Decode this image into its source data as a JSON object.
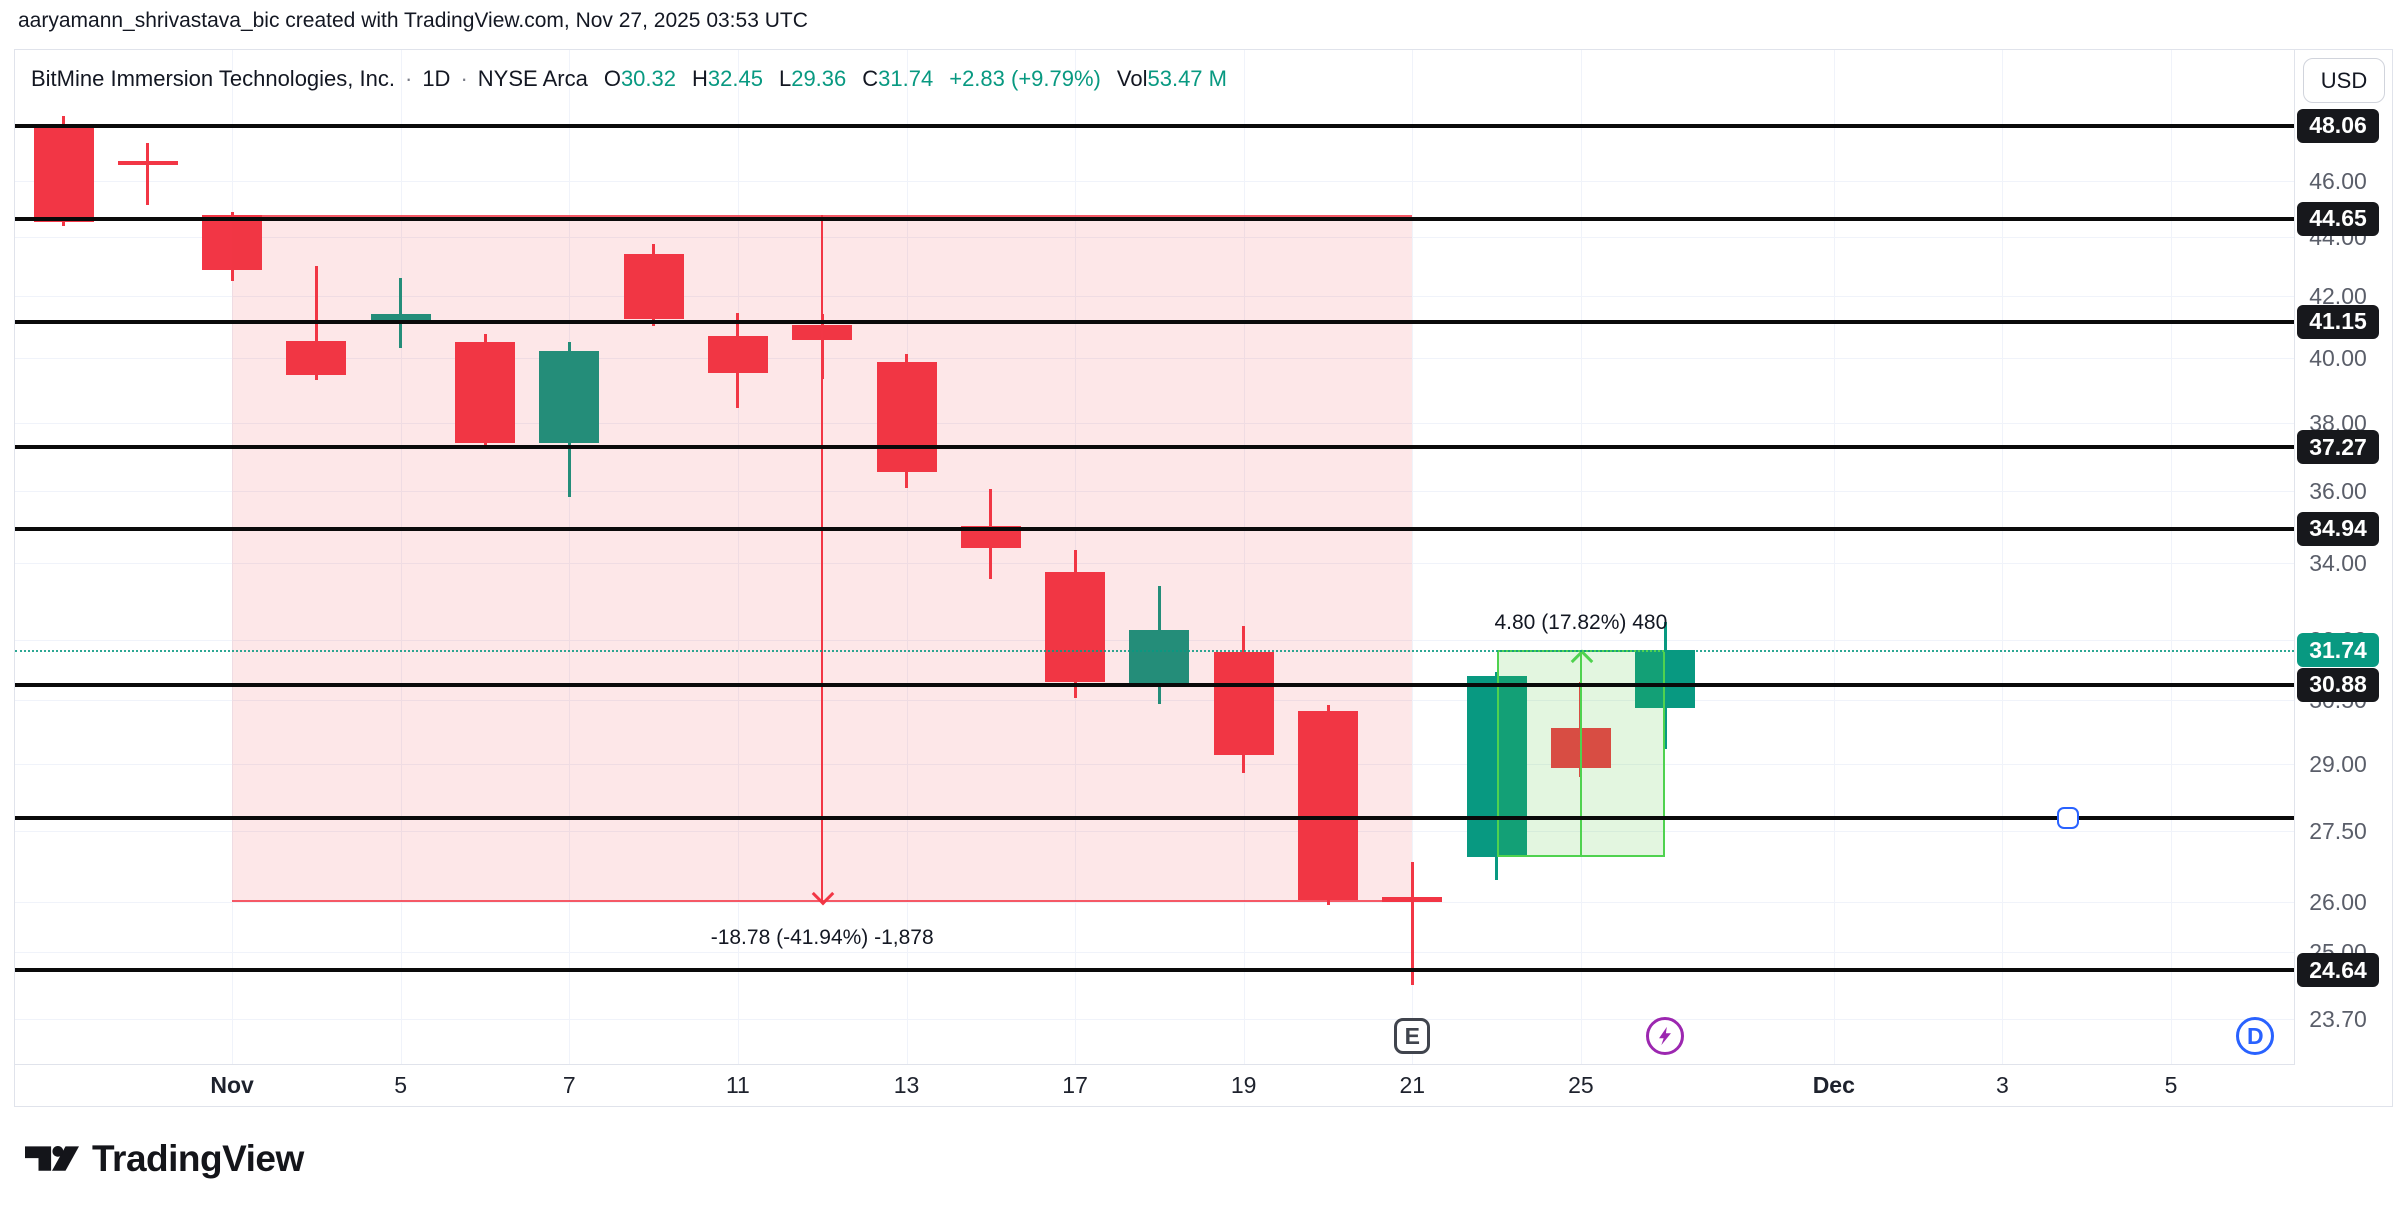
{
  "attribution": "aaryamann_shrivastava_bic created with TradingView.com, Nov 27, 2025 03:53 UTC",
  "currency_button": "USD",
  "footer_logo": "TradingView",
  "header": {
    "symbol": "BitMine Immersion Technologies, Inc.",
    "sep": "·",
    "interval": "1D",
    "exchange": "NYSE Arca",
    "o_label": "O",
    "o": "30.32",
    "h_label": "H",
    "h": "32.45",
    "l_label": "L",
    "l": "29.36",
    "c_label": "C",
    "c": "31.74",
    "change": "+2.83 (+9.79%)",
    "vol_label": "Vol",
    "vol": "53.47 M"
  },
  "colors": {
    "up": "#089981",
    "down": "#f23645",
    "measure_down_line": "#f23645",
    "measure_up_line": "#4fd24f",
    "drawing_line": "#0a0a0a",
    "badge_bg": "#17181c",
    "current_badge_bg": "#089981",
    "earnings_marker": "#40444d",
    "lightning_marker": "#9c27b0",
    "d_marker": "#2962ff"
  },
  "chart_data": {
    "type": "candlestick",
    "title": "BitMine Immersion Technologies, Inc. 1D NYSE Arca",
    "scale": "logarithmic",
    "ylim": [
      23.2,
      49.5
    ],
    "grid": true,
    "candles": [
      {
        "date": "Oct 30",
        "o": 48.0,
        "h": 48.45,
        "l": 44.4,
        "c": 44.55
      },
      {
        "date": "Oct 31",
        "o": 46.75,
        "h": 47.4,
        "l": 45.15,
        "c": 46.6
      },
      {
        "date": "Nov 3",
        "o": 44.77,
        "h": 44.9,
        "l": 42.5,
        "c": 42.87
      },
      {
        "date": "Nov 4",
        "o": 40.53,
        "h": 43.0,
        "l": 39.3,
        "c": 39.46
      },
      {
        "date": "Nov 5",
        "o": 41.2,
        "h": 42.6,
        "l": 40.3,
        "c": 41.4
      },
      {
        "date": "Nov 6",
        "o": 40.5,
        "h": 40.75,
        "l": 37.2,
        "c": 37.4
      },
      {
        "date": "Nov 7",
        "o": 37.4,
        "h": 40.5,
        "l": 35.83,
        "c": 40.21
      },
      {
        "date": "Nov 10",
        "o": 43.42,
        "h": 43.75,
        "l": 41.0,
        "c": 41.23
      },
      {
        "date": "Nov 11",
        "o": 40.68,
        "h": 41.45,
        "l": 38.45,
        "c": 39.53
      },
      {
        "date": "Nov 12",
        "o": 41.05,
        "h": 41.4,
        "l": 39.33,
        "c": 40.55
      },
      {
        "date": "Nov 13",
        "o": 39.88,
        "h": 40.12,
        "l": 36.07,
        "c": 36.55
      },
      {
        "date": "Nov 14",
        "o": 35.02,
        "h": 36.06,
        "l": 33.57,
        "c": 34.4
      },
      {
        "date": "Nov 17",
        "o": 33.76,
        "h": 34.36,
        "l": 30.55,
        "c": 30.94
      },
      {
        "date": "Nov 18",
        "o": 30.85,
        "h": 33.4,
        "l": 30.4,
        "c": 32.26
      },
      {
        "date": "Nov 19",
        "o": 31.7,
        "h": 32.35,
        "l": 28.8,
        "c": 29.2
      },
      {
        "date": "Nov 20",
        "o": 30.25,
        "h": 30.4,
        "l": 25.95,
        "c": 26.05
      },
      {
        "date": "Nov 21",
        "o": 26.1,
        "h": 26.85,
        "l": 24.35,
        "c": 26.0
      },
      {
        "date": "Nov 24",
        "o": 26.95,
        "h": 31.2,
        "l": 26.45,
        "c": 31.1
      },
      {
        "date": "Nov 25",
        "o": 29.85,
        "h": 30.95,
        "l": 28.7,
        "c": 28.9
      },
      {
        "date": "Nov 26",
        "o": 30.32,
        "h": 32.45,
        "l": 29.36,
        "c": 31.74
      }
    ],
    "x_ticks": [
      {
        "label": "Nov",
        "bar": 2,
        "bold": true
      },
      {
        "label": "5",
        "bar": 4
      },
      {
        "label": "7",
        "bar": 6
      },
      {
        "label": "11",
        "bar": 8
      },
      {
        "label": "13",
        "bar": 10
      },
      {
        "label": "17",
        "bar": 12
      },
      {
        "label": "19",
        "bar": 14
      },
      {
        "label": "21",
        "bar": 16
      },
      {
        "label": "25",
        "bar": 18
      },
      {
        "label": "Dec",
        "bar": 21,
        "bold": true
      },
      {
        "label": "3",
        "bar": 23
      },
      {
        "label": "5",
        "bar": 25
      }
    ],
    "y_grid_labels": [
      {
        "label": "46.00",
        "price": 46.0
      },
      {
        "label": "44.00",
        "price": 44.0
      },
      {
        "label": "42.00",
        "price": 42.0
      },
      {
        "label": "40.00",
        "price": 40.0
      },
      {
        "label": "38.00",
        "price": 38.0
      },
      {
        "label": "36.00",
        "price": 36.0
      },
      {
        "label": "34.00",
        "price": 34.0
      },
      {
        "label": "32.00",
        "price": 32.0
      },
      {
        "label": "30.50",
        "price": 30.5
      },
      {
        "label": "29.00",
        "price": 29.0
      },
      {
        "label": "27.50",
        "price": 27.5
      },
      {
        "label": "26.00",
        "price": 26.0
      },
      {
        "label": "25.00",
        "price": 25.0
      },
      {
        "label": "23.70",
        "price": 23.7
      }
    ],
    "line_drawings": [
      {
        "price": 48.06,
        "label": "48.06"
      },
      {
        "price": 44.65,
        "label": "44.65"
      },
      {
        "price": 41.15,
        "label": "41.15"
      },
      {
        "price": 37.27,
        "label": "37.27"
      },
      {
        "price": 34.94,
        "label": "34.94"
      },
      {
        "price": 30.88,
        "label": "30.88"
      },
      {
        "price": 27.78,
        "label": null,
        "handle_bar": 23.78
      },
      {
        "price": 24.64,
        "label": "24.64"
      }
    ],
    "current_price": {
      "price": 31.74,
      "label": "31.74"
    },
    "measurements": [
      {
        "dir": "down",
        "text": "-18.78 (-41.94%) -1,878",
        "from_bar": 2,
        "to_bar": 16,
        "top": 44.78,
        "bottom": 26.0
      },
      {
        "dir": "up",
        "text": "4.80 (17.82%) 480",
        "from_bar": 17,
        "to_bar": 19,
        "top": 31.74,
        "bottom": 26.94
      }
    ],
    "markers": [
      {
        "kind": "earnings",
        "label": "E",
        "shape": "square",
        "color": "#40444d",
        "bar": 16
      },
      {
        "kind": "lightning",
        "label": "",
        "shape": "circle",
        "color": "#9c27b0",
        "bar": 19
      },
      {
        "kind": "d-badge",
        "label": "D",
        "shape": "circle",
        "color": "#2962ff",
        "bar": 26
      }
    ]
  }
}
